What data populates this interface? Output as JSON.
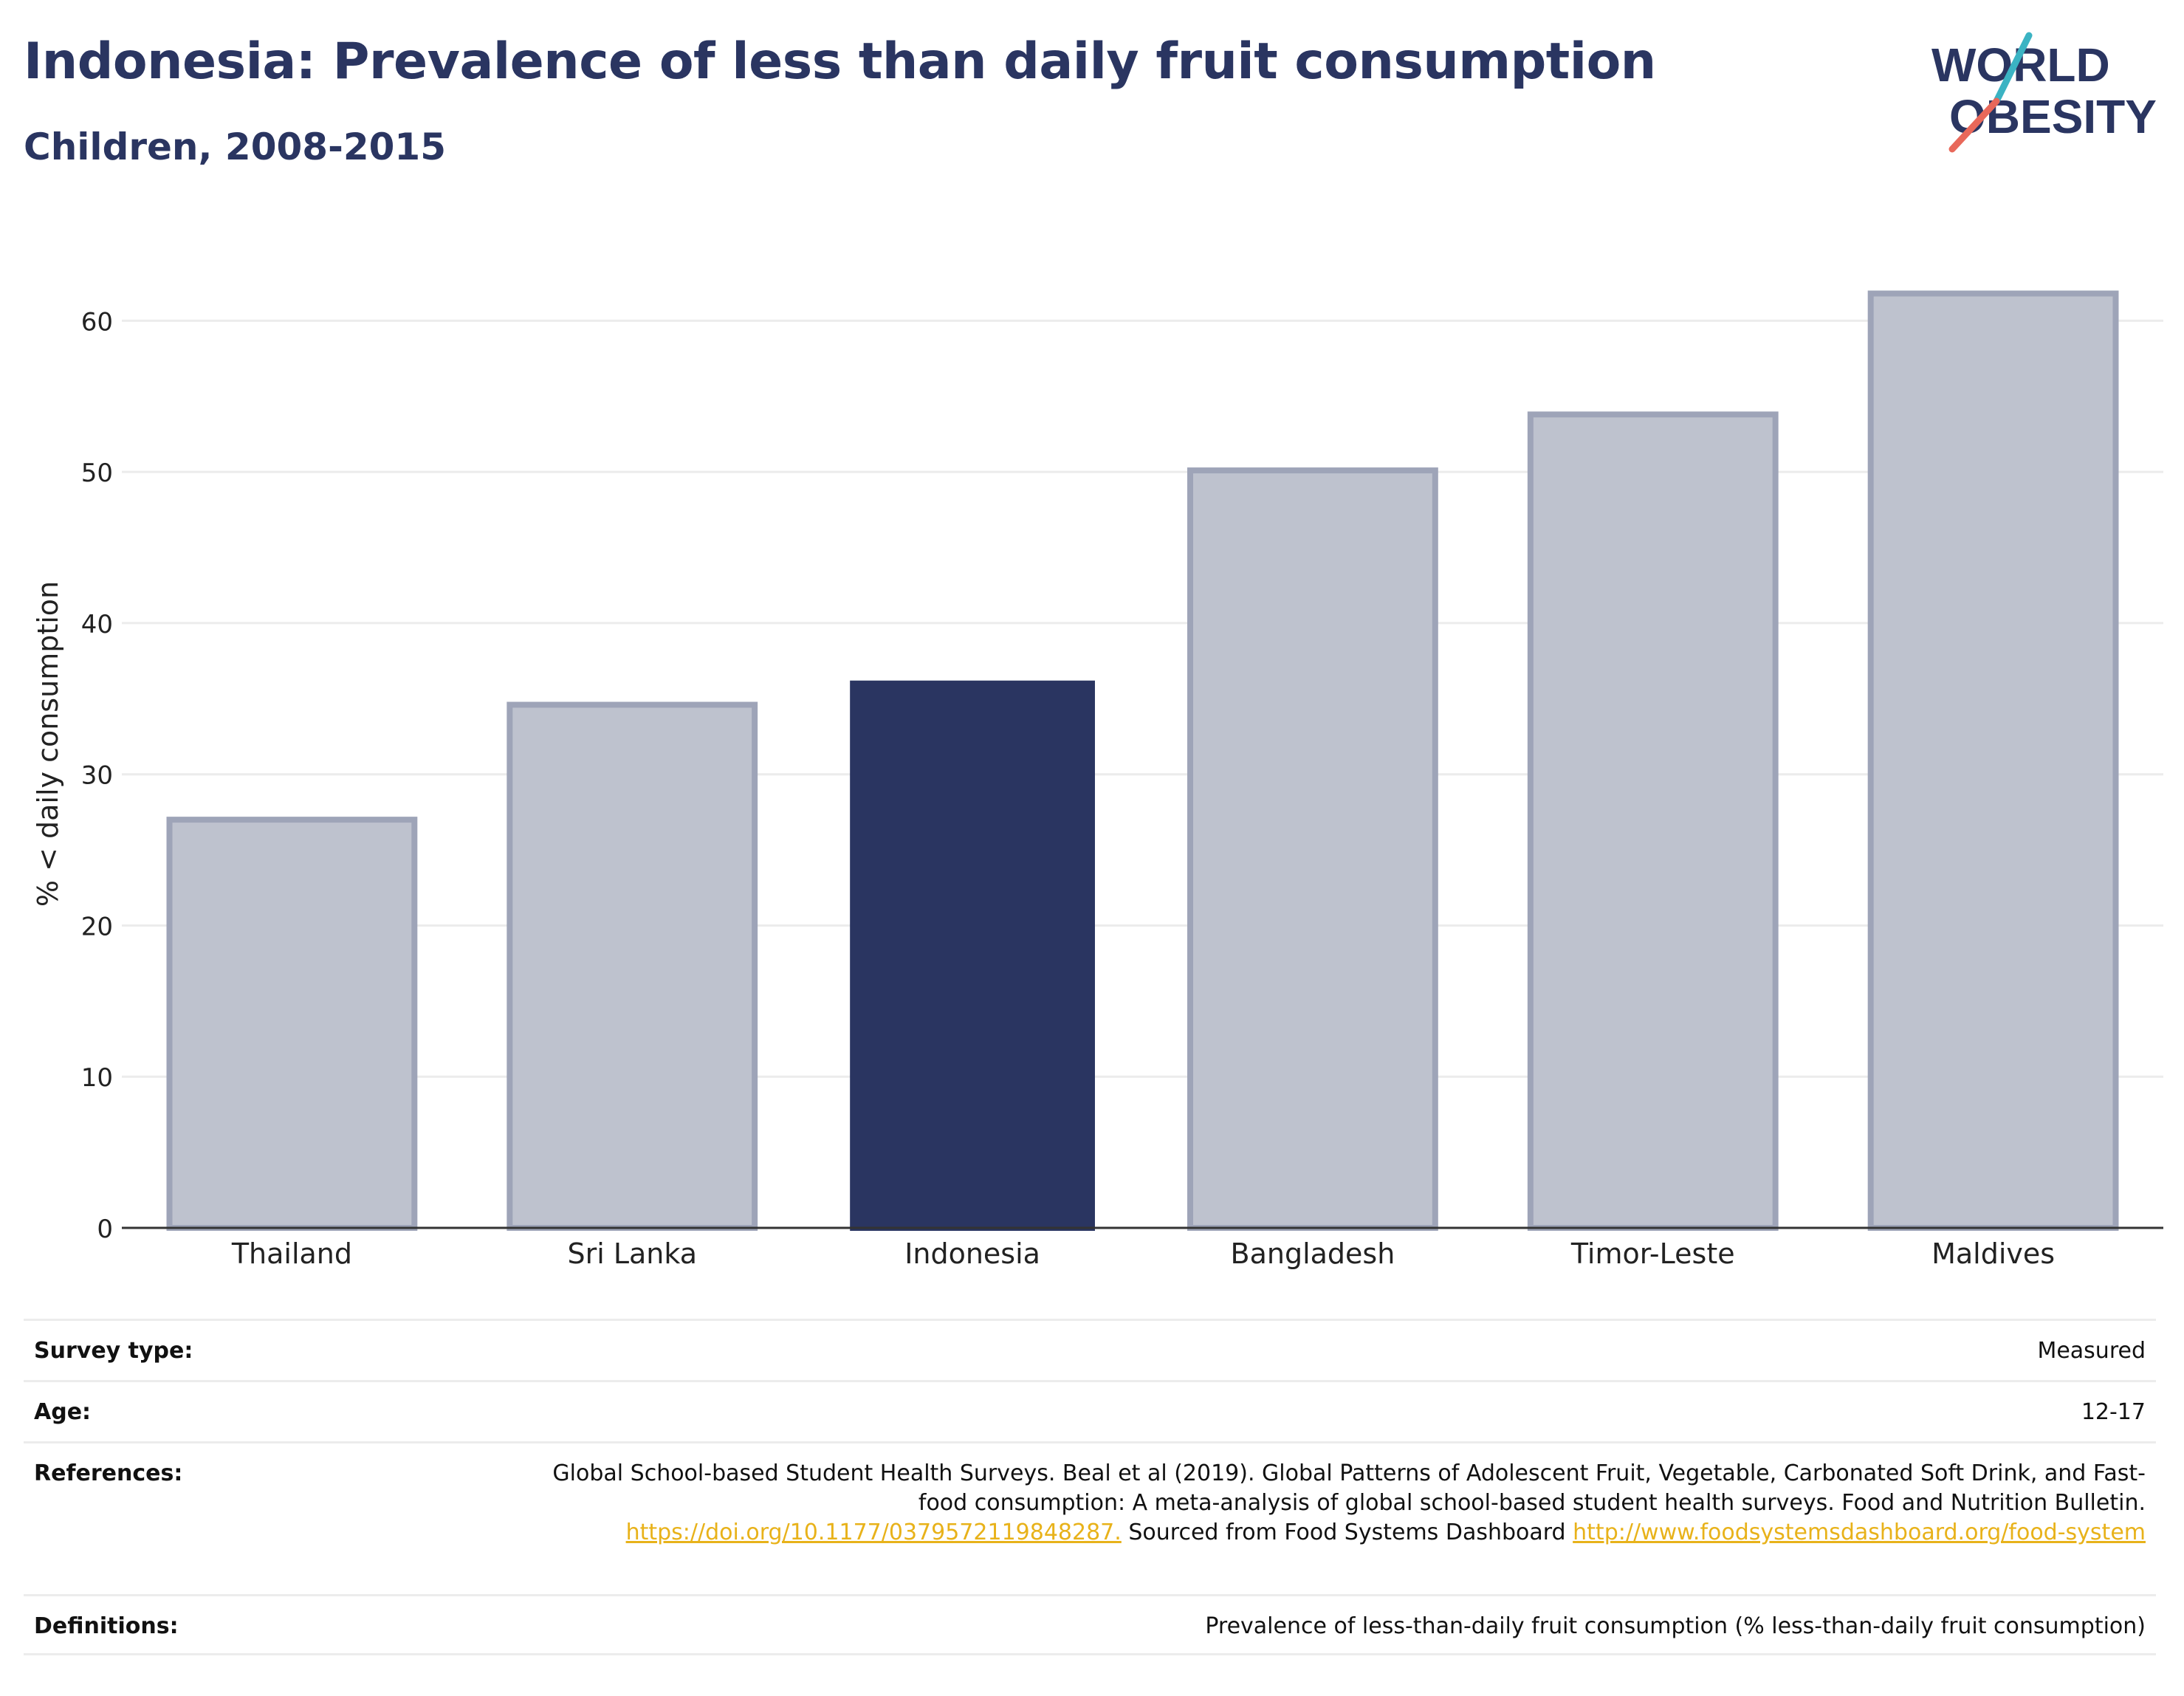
{
  "header": {
    "title": "Indonesia: Prevalence of less than daily fruit consumption",
    "subtitle": "Children, 2008-2015"
  },
  "logo": {
    "line1": "WORLD",
    "line2": "OBESITY",
    "colors": {
      "text": "#2a3561",
      "slash_teal": "#3bb3c3",
      "slash_red": "#e8685a"
    }
  },
  "chart_data": {
    "type": "bar",
    "title": "Indonesia: Prevalence of less than daily fruit consumption",
    "subtitle": "Children, 2008-2015",
    "xlabel": "",
    "ylabel": "% < daily consumption",
    "categories": [
      "Thailand",
      "Sri Lanka",
      "Indonesia",
      "Bangladesh",
      "Timor-Leste",
      "Maldives"
    ],
    "values": [
      27.0,
      34.6,
      36.2,
      50.1,
      53.8,
      61.8
    ],
    "highlight": "Indonesia",
    "ylim": [
      0,
      65
    ],
    "yticks": [
      0,
      10,
      20,
      30,
      40,
      50,
      60
    ],
    "grid": true,
    "colors": {
      "highlight": "#2a3561",
      "other_fill": "#bec2ce",
      "other_stroke": "#9ea4b8",
      "grid": "#ececec",
      "axis": "#333333"
    }
  },
  "info": {
    "survey_type": {
      "label": "Survey type:",
      "value": "Measured"
    },
    "age": {
      "label": "Age:",
      "value": "12-17"
    },
    "references": {
      "label": "References:",
      "text1": "Global School-based Student Health Surveys. Beal et al (2019). Global Patterns of Adolescent Fruit, Vegetable, Carbonated Soft Drink, and Fast-food consumption: A meta-analysis of global school-based student health surveys. Food and Nutrition Bulletin.",
      "link1": "https://doi.org/10.1177/0379572119848287.",
      "text2": "Sourced from Food Systems Dashboard",
      "link2": "http://www.foodsystemsdashboard.org/food-system"
    },
    "definitions": {
      "label": "Definitions:",
      "value": "Prevalence of less-than-daily fruit consumption (% less-than-daily fruit consumption)"
    }
  }
}
